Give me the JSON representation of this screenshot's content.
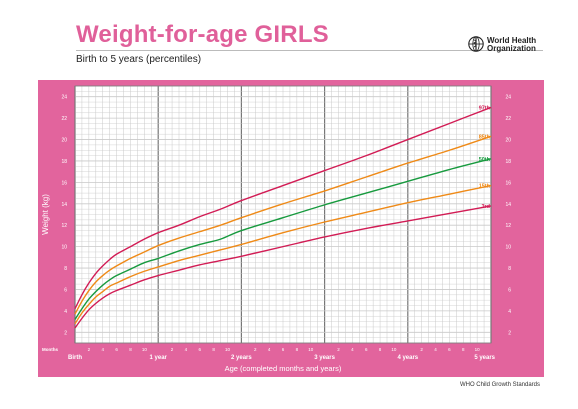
{
  "header": {
    "title": "Weight-for-age GIRLS",
    "subtitle": "Birth to 5 years (percentiles)",
    "org_name_line1": "World Health",
    "org_name_line2": "Organization"
  },
  "footer": {
    "text": "WHO Child Growth Standards"
  },
  "colors": {
    "frame_pink": "#e2649d",
    "grid_minor": "#c9c9c9",
    "grid_major": "#777777",
    "p97": "#d21c55",
    "p85": "#ef8a17",
    "p50": "#179a3e",
    "p15": "#ef8a17",
    "p3": "#d21c55"
  },
  "chart_data": {
    "type": "line",
    "title": "Weight-for-age GIRLS",
    "subtitle": "Birth to 5 years (percentiles)",
    "xlabel": "Age (completed months and years)",
    "ylabel": "Weight (kg)",
    "xlim": [
      0,
      60
    ],
    "ylim": [
      1,
      25
    ],
    "y_ticks": [
      2,
      4,
      6,
      8,
      10,
      12,
      14,
      16,
      18,
      20,
      22,
      24
    ],
    "x_month_tick_label": "Months",
    "x_month_ticks": [
      "2",
      "4",
      "6",
      "8",
      "10"
    ],
    "x_year_labels": [
      "Birth",
      "1 year",
      "2 years",
      "3 years",
      "4 years",
      "5 years"
    ],
    "grid": true,
    "x": [
      0,
      1,
      2,
      3,
      4,
      5,
      6,
      8,
      10,
      12,
      15,
      18,
      21,
      24,
      30,
      36,
      42,
      48,
      54,
      60
    ],
    "series": [
      {
        "name": "97th",
        "color_key": "p97",
        "values": [
          4.2,
          5.5,
          6.6,
          7.5,
          8.2,
          8.8,
          9.3,
          10.0,
          10.7,
          11.3,
          12.0,
          12.8,
          13.5,
          14.3,
          15.7,
          17.1,
          18.5,
          20.0,
          21.5,
          23.0
        ]
      },
      {
        "name": "85th",
        "color_key": "p85",
        "values": [
          3.7,
          4.9,
          5.9,
          6.7,
          7.3,
          7.8,
          8.2,
          8.9,
          9.5,
          10.1,
          10.8,
          11.4,
          12.0,
          12.7,
          14.0,
          15.2,
          16.5,
          17.8,
          19.0,
          20.3
        ]
      },
      {
        "name": "50th",
        "color_key": "p50",
        "values": [
          3.2,
          4.2,
          5.1,
          5.8,
          6.4,
          6.9,
          7.3,
          7.9,
          8.5,
          8.9,
          9.6,
          10.2,
          10.7,
          11.5,
          12.7,
          13.9,
          15.0,
          16.1,
          17.2,
          18.2
        ]
      },
      {
        "name": "15th",
        "color_key": "p15",
        "values": [
          2.8,
          3.8,
          4.6,
          5.3,
          5.8,
          6.3,
          6.6,
          7.2,
          7.7,
          8.1,
          8.7,
          9.2,
          9.7,
          10.2,
          11.3,
          12.3,
          13.2,
          14.1,
          14.9,
          15.7
        ]
      },
      {
        "name": "3rd",
        "color_key": "p3",
        "values": [
          2.4,
          3.3,
          4.1,
          4.7,
          5.2,
          5.6,
          5.9,
          6.4,
          6.9,
          7.3,
          7.8,
          8.3,
          8.7,
          9.1,
          10.0,
          10.9,
          11.7,
          12.4,
          13.1,
          13.8
        ]
      }
    ]
  }
}
